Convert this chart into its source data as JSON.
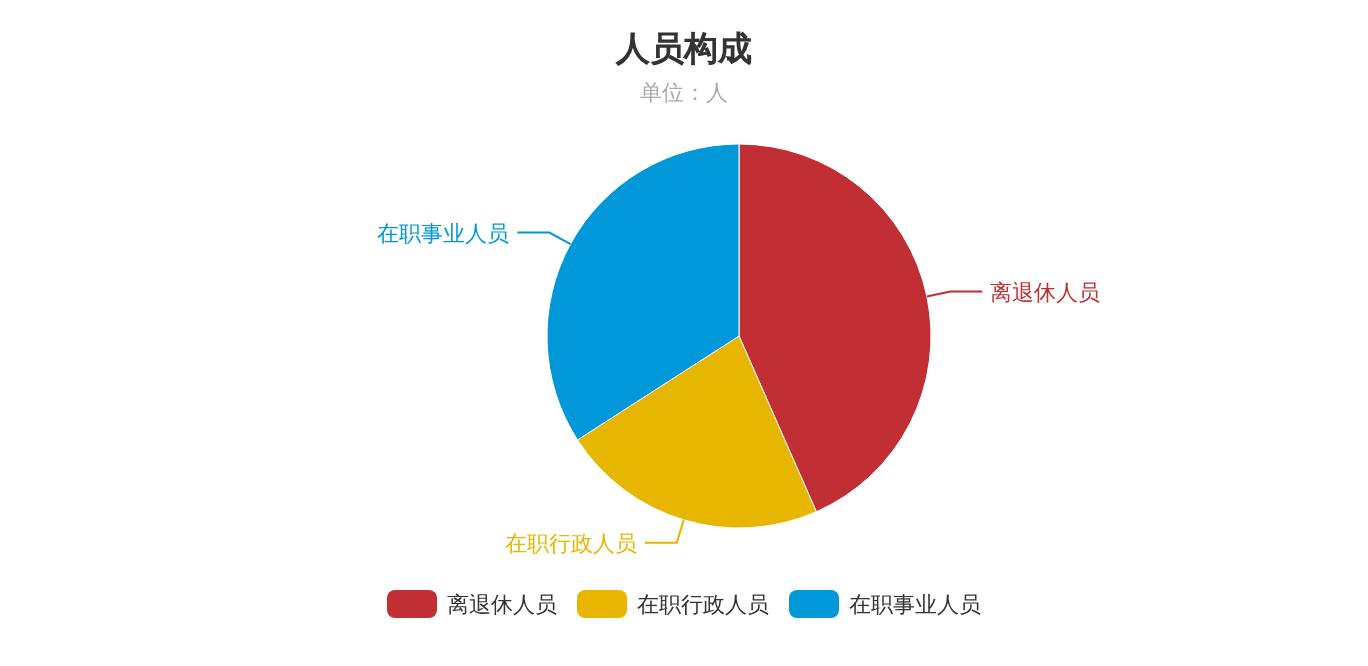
{
  "chart_data": {
    "type": "pie",
    "title": "人员构成",
    "subtitle": "单位：人",
    "categories": [
      "离退休人员",
      "在职行政人员",
      "在职事业人员"
    ],
    "values": [
      43.4,
      22.5,
      34.1
    ],
    "colors": [
      "#c12e34",
      "#e6b600",
      "#0098d9"
    ],
    "legend": "bottom"
  }
}
